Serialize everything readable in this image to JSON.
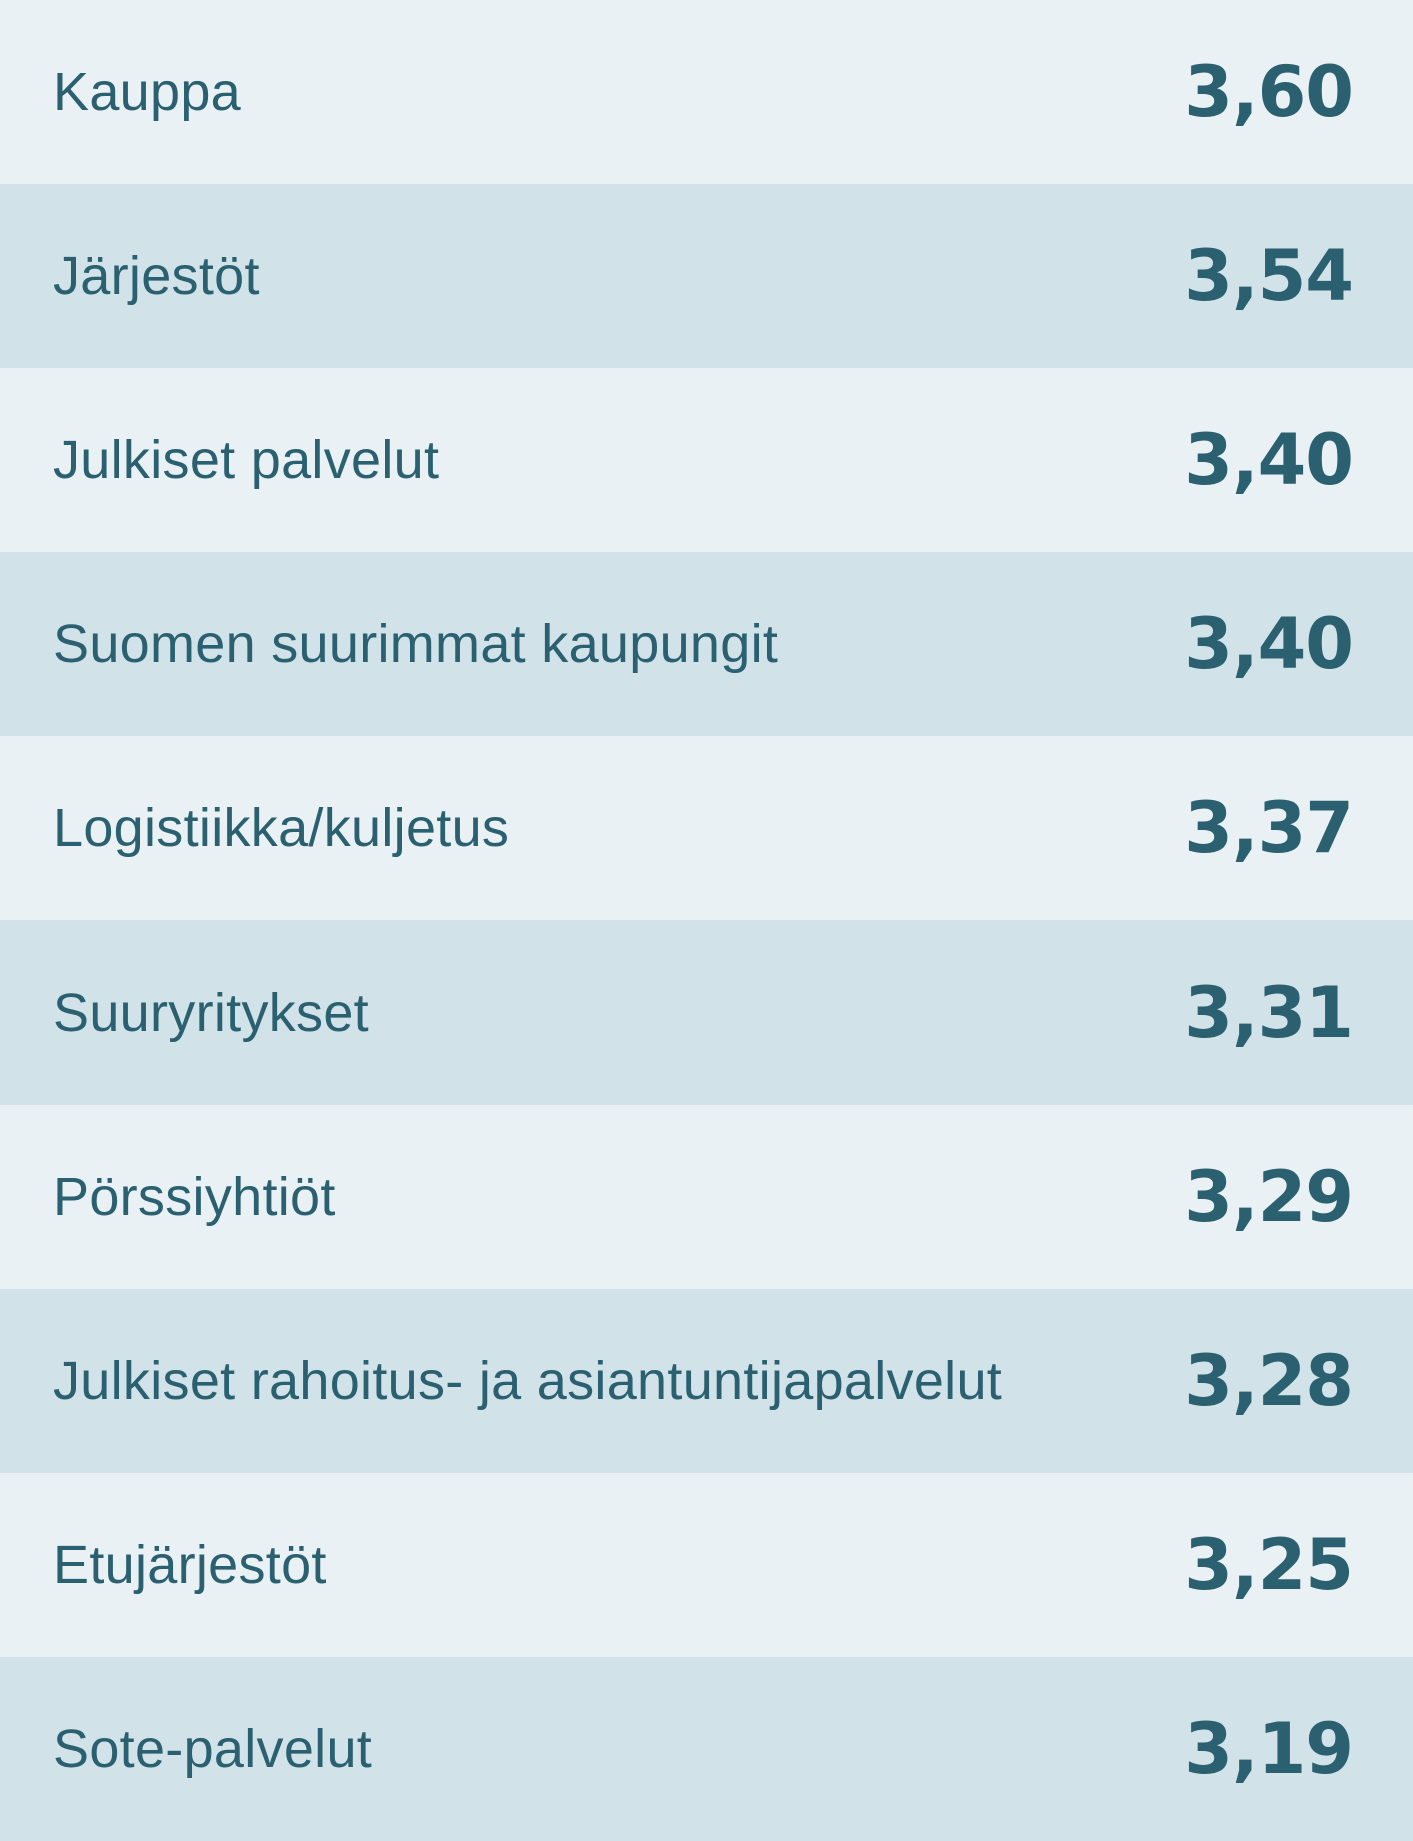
{
  "rows": [
    {
      "label": "Kauppa",
      "value": "3,60"
    },
    {
      "label": "Järjestöt",
      "value": "3,54"
    },
    {
      "label": "Julkiset palvelut",
      "value": "3,40"
    },
    {
      "label": "Suomen suurimmat kaupungit",
      "value": "3,40"
    },
    {
      "label": "Logistiikka/kuljetus",
      "value": "3,37"
    },
    {
      "label": "Suuryritykset",
      "value": "3,31"
    },
    {
      "label": "Pörssiyhtiöt",
      "value": "3,29"
    },
    {
      "label": "Julkiset rahoitus- ja asiantuntijapalvelut",
      "value": "3,28"
    },
    {
      "label": "Etujärjestöt",
      "value": "3,25"
    },
    {
      "label": "Sote-palvelut",
      "value": "3,19"
    }
  ],
  "colors": {
    "text": "#2a6070",
    "row_light": "#e9f1f4",
    "row_dark": "#d1e2e8"
  }
}
